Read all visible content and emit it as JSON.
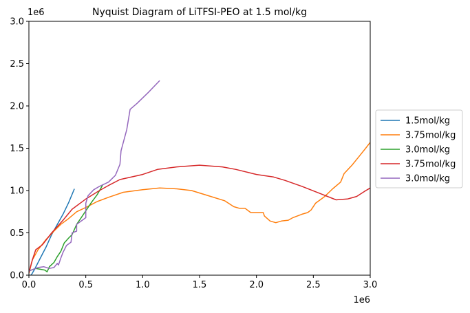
{
  "chart_data": {
    "type": "line",
    "title": "Nyquist Diagram of LiTFSI-PEO at 1.5 mol/kg",
    "xlabel": "",
    "ylabel": "",
    "x_offset_label": "1e6",
    "y_offset_label": "1e6",
    "xlim": [
      0,
      3.0
    ],
    "ylim": [
      0,
      3.0
    ],
    "x_ticks": [
      "0.0",
      "0.5",
      "1.0",
      "1.5",
      "2.0",
      "2.5",
      "3.0"
    ],
    "y_ticks": [
      "0.0",
      "0.5",
      "1.0",
      "1.5",
      "2.0",
      "2.5",
      "3.0"
    ],
    "grid": false,
    "legend_position": "center-right-outside",
    "series": [
      {
        "name": "1.5mol/kg",
        "color": "#1f77b4",
        "points": [
          [
            0.0,
            0.0
          ],
          [
            0.02,
            0.0
          ],
          [
            0.05,
            0.07
          ],
          [
            0.1,
            0.2
          ],
          [
            0.15,
            0.33
          ],
          [
            0.2,
            0.48
          ],
          [
            0.25,
            0.6
          ],
          [
            0.3,
            0.72
          ],
          [
            0.35,
            0.86
          ],
          [
            0.4,
            1.02
          ]
        ]
      },
      {
        "name": "3.75mol/kg",
        "color": "#ff7f0e",
        "points": [
          [
            0.0,
            0.02
          ],
          [
            0.03,
            0.18
          ],
          [
            0.08,
            0.3
          ],
          [
            0.15,
            0.42
          ],
          [
            0.22,
            0.52
          ],
          [
            0.28,
            0.6
          ],
          [
            0.35,
            0.67
          ],
          [
            0.42,
            0.75
          ],
          [
            0.5,
            0.8
          ],
          [
            0.6,
            0.87
          ],
          [
            0.7,
            0.92
          ],
          [
            0.83,
            0.98
          ],
          [
            1.0,
            1.01
          ],
          [
            1.15,
            1.03
          ],
          [
            1.3,
            1.02
          ],
          [
            1.43,
            1.0
          ],
          [
            1.55,
            0.95
          ],
          [
            1.72,
            0.88
          ],
          [
            1.8,
            0.81
          ],
          [
            1.85,
            0.79
          ],
          [
            1.9,
            0.79
          ],
          [
            1.95,
            0.74
          ],
          [
            2.0,
            0.74
          ],
          [
            2.06,
            0.74
          ],
          [
            2.07,
            0.7
          ],
          [
            2.12,
            0.64
          ],
          [
            2.17,
            0.62
          ],
          [
            2.22,
            0.64
          ],
          [
            2.28,
            0.65
          ],
          [
            2.32,
            0.68
          ],
          [
            2.4,
            0.72
          ],
          [
            2.45,
            0.74
          ],
          [
            2.48,
            0.77
          ],
          [
            2.52,
            0.85
          ],
          [
            2.6,
            0.93
          ],
          [
            2.67,
            1.02
          ],
          [
            2.74,
            1.1
          ],
          [
            2.77,
            1.2
          ],
          [
            2.84,
            1.3
          ],
          [
            2.9,
            1.4
          ],
          [
            2.96,
            1.5
          ],
          [
            3.0,
            1.57
          ]
        ]
      },
      {
        "name": "3.0mol/kg",
        "color": "#2ca02c",
        "points": [
          [
            0.0,
            0.05
          ],
          [
            0.06,
            0.08
          ],
          [
            0.1,
            0.07
          ],
          [
            0.14,
            0.06
          ],
          [
            0.16,
            0.04
          ],
          [
            0.18,
            0.1
          ],
          [
            0.22,
            0.15
          ],
          [
            0.25,
            0.22
          ],
          [
            0.28,
            0.28
          ],
          [
            0.31,
            0.38
          ],
          [
            0.35,
            0.44
          ],
          [
            0.38,
            0.48
          ],
          [
            0.42,
            0.6
          ],
          [
            0.48,
            0.72
          ],
          [
            0.55,
            0.86
          ],
          [
            0.6,
            0.95
          ],
          [
            0.65,
            1.07
          ]
        ]
      },
      {
        "name": "3.75mol/kg",
        "color": "#d62728",
        "points": [
          [
            0.0,
            0.03
          ],
          [
            0.03,
            0.18
          ],
          [
            0.06,
            0.3
          ],
          [
            0.12,
            0.36
          ],
          [
            0.2,
            0.5
          ],
          [
            0.3,
            0.65
          ],
          [
            0.38,
            0.78
          ],
          [
            0.5,
            0.9
          ],
          [
            0.62,
            1.0
          ],
          [
            0.7,
            1.06
          ],
          [
            0.8,
            1.13
          ],
          [
            1.0,
            1.19
          ],
          [
            1.13,
            1.25
          ],
          [
            1.3,
            1.28
          ],
          [
            1.5,
            1.3
          ],
          [
            1.7,
            1.28
          ],
          [
            1.82,
            1.25
          ],
          [
            2.0,
            1.19
          ],
          [
            2.15,
            1.16
          ],
          [
            2.25,
            1.12
          ],
          [
            2.4,
            1.05
          ],
          [
            2.55,
            0.97
          ],
          [
            2.7,
            0.89
          ],
          [
            2.8,
            0.9
          ],
          [
            2.88,
            0.93
          ],
          [
            2.95,
            0.99
          ],
          [
            3.0,
            1.03
          ],
          [
            3.02,
            1.08
          ]
        ]
      },
      {
        "name": "3.0mol/kg",
        "color": "#9467bd",
        "points": [
          [
            0.0,
            0.05
          ],
          [
            0.08,
            0.09
          ],
          [
            0.13,
            0.1
          ],
          [
            0.18,
            0.08
          ],
          [
            0.22,
            0.09
          ],
          [
            0.25,
            0.14
          ],
          [
            0.26,
            0.12
          ],
          [
            0.28,
            0.2
          ],
          [
            0.3,
            0.27
          ],
          [
            0.33,
            0.35
          ],
          [
            0.37,
            0.39
          ],
          [
            0.38,
            0.5
          ],
          [
            0.42,
            0.52
          ],
          [
            0.42,
            0.6
          ],
          [
            0.5,
            0.68
          ],
          [
            0.5,
            0.85
          ],
          [
            0.52,
            0.94
          ],
          [
            0.57,
            1.01
          ],
          [
            0.62,
            1.05
          ],
          [
            0.7,
            1.1
          ],
          [
            0.76,
            1.18
          ],
          [
            0.8,
            1.31
          ],
          [
            0.81,
            1.47
          ],
          [
            0.86,
            1.72
          ],
          [
            0.89,
            1.96
          ],
          [
            0.95,
            2.03
          ],
          [
            1.05,
            2.16
          ],
          [
            1.15,
            2.3
          ]
        ]
      }
    ]
  }
}
